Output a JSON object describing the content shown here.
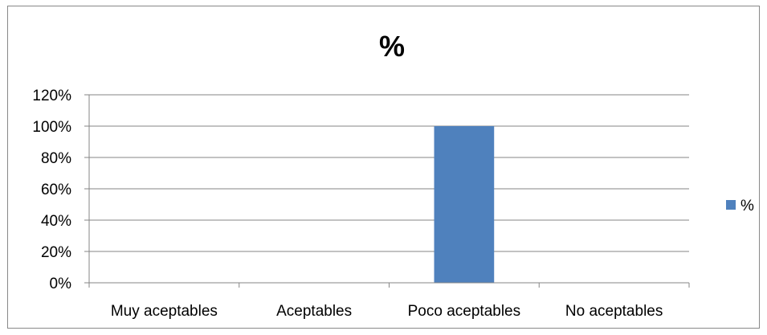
{
  "chart_data": {
    "type": "bar",
    "title": "%",
    "xlabel": "",
    "ylabel": "",
    "categories": [
      "Muy aceptables",
      "Aceptables",
      "Poco aceptables",
      "No aceptables"
    ],
    "series": [
      {
        "name": "%",
        "values": [
          0,
          0,
          1.0,
          0
        ]
      }
    ],
    "ylim": [
      0,
      1.2
    ],
    "yticks": [
      0,
      0.2,
      0.4,
      0.6,
      0.8,
      1.0,
      1.2
    ],
    "ytick_labels": [
      "0%",
      "20%",
      "40%",
      "60%",
      "80%",
      "100%",
      "120%"
    ],
    "grid": true,
    "legend": "right",
    "colors": {
      "bar": "#4f81bd",
      "grid": "#868686",
      "axis": "#868686"
    }
  }
}
